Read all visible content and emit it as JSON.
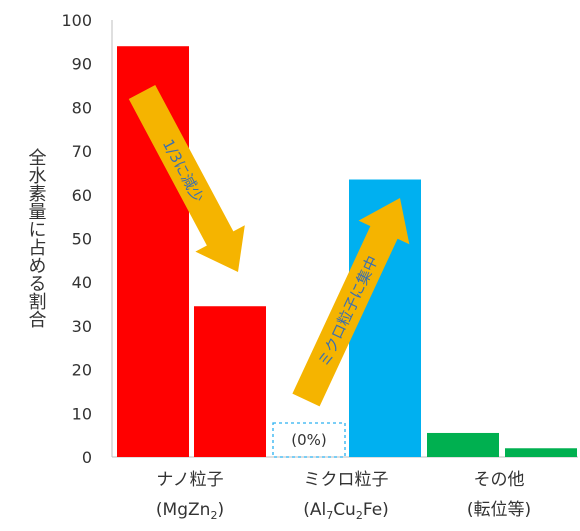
{
  "chart_data": {
    "type": "bar",
    "ylabel": "全水素量に占める割合",
    "ylim": [
      0,
      100
    ],
    "yticks": [
      0,
      10,
      20,
      30,
      40,
      50,
      60,
      70,
      80,
      90,
      100
    ],
    "grid": false,
    "categories": [
      {
        "line1": "ナノ粒子",
        "line2": "(MgZn",
        "sub": "2",
        "tail": ")"
      },
      {
        "line1": "ミクロ粒子",
        "line2": "(Al",
        "sub": "7",
        "mid": "Cu",
        "sub2": "2",
        "tail2": "Fe)"
      },
      {
        "line1": "その他",
        "line2": "(転位等)"
      }
    ],
    "bars": [
      {
        "group": 0,
        "value": 94,
        "color": "#ff0000"
      },
      {
        "group": 0,
        "value": 34.5,
        "color": "#ff0000"
      },
      {
        "group": 1,
        "value": 0,
        "color": "#2ab0f0",
        "dashed": true,
        "label": "(0%)"
      },
      {
        "group": 1,
        "value": 63.5,
        "color": "#00b0f0"
      },
      {
        "group": 2,
        "value": 5.5,
        "color": "#00b050"
      },
      {
        "group": 2,
        "value": 2,
        "color": "#00b050"
      }
    ],
    "annotations": [
      {
        "text": "1/3に減少",
        "arrow_color": "#f5b400"
      },
      {
        "text": "ミクロ粒子に集中",
        "arrow_color": "#f5b400"
      }
    ]
  }
}
